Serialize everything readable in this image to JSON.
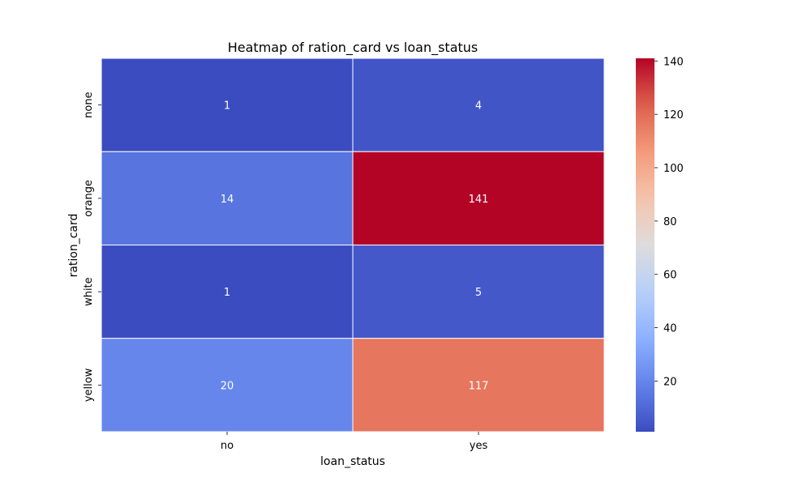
{
  "chart_data": {
    "type": "heatmap",
    "title": "Heatmap of ration_card vs loan_status",
    "xlabel": "loan_status",
    "ylabel": "ration_card",
    "x_categories": [
      "no",
      "yes"
    ],
    "y_categories": [
      "none",
      "orange",
      "white",
      "yellow"
    ],
    "values": [
      [
        1,
        4
      ],
      [
        14,
        141
      ],
      [
        1,
        5
      ],
      [
        20,
        117
      ]
    ],
    "colormap": "coolwarm",
    "colorbar": {
      "min": 1,
      "max": 141,
      "ticks": [
        20,
        40,
        60,
        80,
        100,
        120,
        140
      ]
    },
    "annotations": true
  }
}
